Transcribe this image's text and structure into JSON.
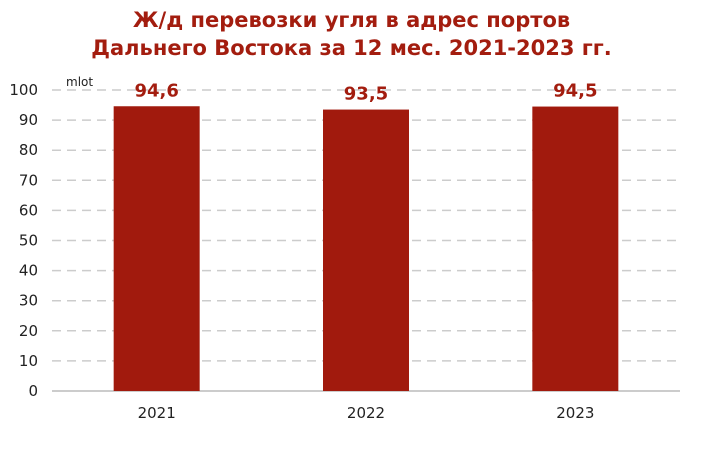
{
  "colors": {
    "bar": "#A11A0D",
    "title": "#A31D0F",
    "grid": "#CCCCCC",
    "axis": "#BBBBBB",
    "text": "#222222"
  },
  "chart_data": {
    "type": "bar",
    "title_lines": [
      "Ж/д перевозки угля в адрес портов",
      "Дальнего Востока за 12 мес. 2021-2023 гг."
    ],
    "ylabel": "mlot",
    "xlabel": "",
    "categories": [
      "2021",
      "2022",
      "2023"
    ],
    "values": [
      94.6,
      93.5,
      94.5
    ],
    "data_labels": [
      "94,6",
      "93,5",
      "94,5"
    ],
    "ylim": [
      0,
      100
    ],
    "yticks": [
      0,
      10,
      20,
      30,
      40,
      50,
      60,
      70,
      80,
      90,
      100
    ],
    "grid": "horizontal-dashed",
    "legend": "none"
  }
}
